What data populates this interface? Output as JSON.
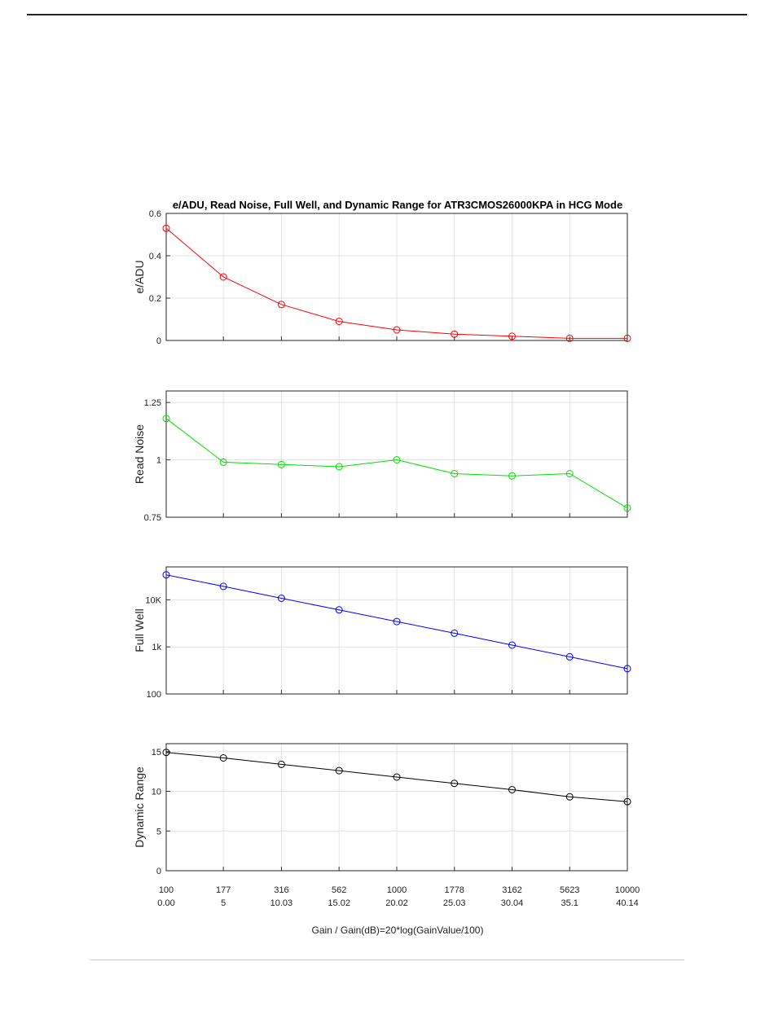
{
  "figure_title": "e/ADU, Read Noise, Full Well, and Dynamic Range for ATR3CMOS26000KPA in HCG Mode",
  "x_axis": {
    "label": "Gain / Gain(dB)=20*log(GainValue/100)",
    "gain_labels": [
      "100",
      "177",
      "316",
      "562",
      "1000",
      "1778",
      "3162",
      "5623",
      "10000"
    ],
    "gain_db_labels": [
      "0.00",
      "5",
      "10.03",
      "15.02",
      "20.02",
      "25.03",
      "30.04",
      "35.1",
      "40.14"
    ]
  },
  "chart_data": [
    {
      "type": "line",
      "ylabel": "e/ADU",
      "x": [
        100,
        177,
        316,
        562,
        1000,
        1778,
        3162,
        5623,
        10000
      ],
      "series": [
        {
          "values": [
            0.53,
            0.3,
            0.17,
            0.09,
            0.05,
            0.03,
            0.02,
            0.01,
            0.01
          ]
        }
      ],
      "ylim": [
        0,
        0.6
      ],
      "yticks": [
        0,
        0.2,
        0.4,
        0.6
      ],
      "ytick_labels": [
        "0",
        "0.2",
        "0.4",
        "0.6"
      ],
      "color": "#ff0000",
      "grid": true
    },
    {
      "type": "line",
      "ylabel": "Read Noise",
      "x": [
        100,
        177,
        316,
        562,
        1000,
        1778,
        3162,
        5623,
        10000
      ],
      "series": [
        {
          "values": [
            1.18,
            0.99,
            0.98,
            0.97,
            1.0,
            0.94,
            0.93,
            0.94,
            0.79
          ]
        }
      ],
      "ylim": [
        0.75,
        1.3
      ],
      "yticks": [
        0.75,
        1,
        1.25
      ],
      "ytick_labels": [
        "0.75",
        "1",
        "1.25"
      ],
      "color": "#00e000",
      "grid": true
    },
    {
      "type": "line",
      "ylabel": "Full Well",
      "yscale": "log",
      "x": [
        100,
        177,
        316,
        562,
        1000,
        1778,
        3162,
        5623,
        10000
      ],
      "series": [
        {
          "values": [
            34000,
            19300,
            10800,
            6100,
            3450,
            1950,
            1090,
            615,
            345
          ]
        }
      ],
      "ylim": [
        100,
        50000
      ],
      "yticks": [
        100,
        1000,
        10000
      ],
      "ytick_labels": [
        "100",
        "1k",
        "10K"
      ],
      "color": "#0000ff",
      "grid": true
    },
    {
      "type": "line",
      "ylabel": "Dynamic Range",
      "x": [
        100,
        177,
        316,
        562,
        1000,
        1778,
        3162,
        5623,
        10000
      ],
      "series": [
        {
          "values": [
            14.9,
            14.2,
            13.4,
            12.6,
            11.8,
            11.0,
            10.2,
            9.3,
            8.7
          ]
        }
      ],
      "ylim": [
        0,
        16
      ],
      "yticks": [
        0,
        5,
        10,
        15
      ],
      "ytick_labels": [
        "0",
        "5",
        "10",
        "15"
      ],
      "color": "#000000",
      "grid": true
    }
  ]
}
